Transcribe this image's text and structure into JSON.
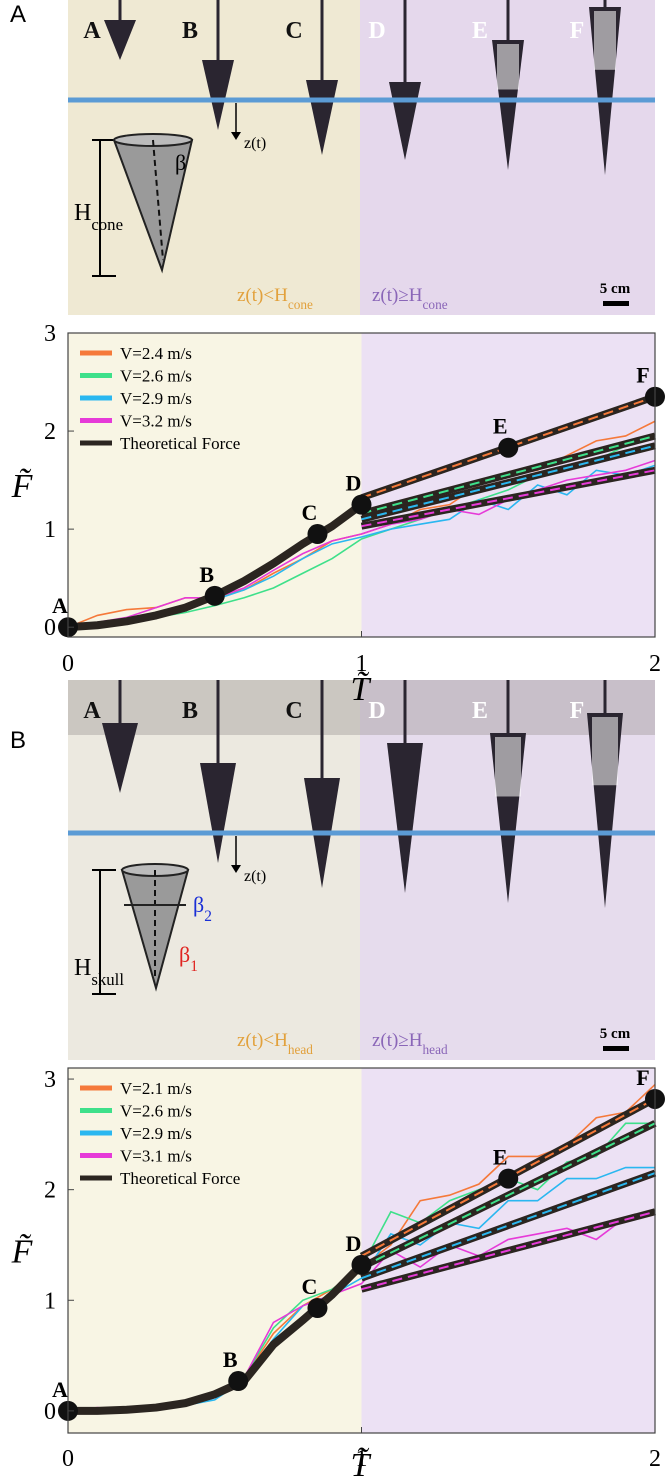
{
  "panels": [
    {
      "label": "A",
      "photo": {
        "frames": [
          "A",
          "B",
          "C",
          "D",
          "E",
          "F"
        ],
        "depth_label": "z(t)",
        "height_label": {
          "main": "H",
          "sub": "cone"
        },
        "angle_labels": [
          "β"
        ],
        "conditions": [
          {
            "main": "z(t)<H",
            "sub": "cone",
            "color": "#e2a13c"
          },
          {
            "main": "z(t)≥H",
            "sub": "cone",
            "color": "#8a66b8"
          }
        ],
        "scale_label": "5 cm"
      }
    },
    {
      "label": "B",
      "photo": {
        "frames": [
          "A",
          "B",
          "C",
          "D",
          "E",
          "F"
        ],
        "depth_label": "z(t)",
        "height_label": {
          "main": "H",
          "sub": "skull"
        },
        "angle_labels": [
          {
            "main": "β",
            "sub": "2",
            "color": "#1a2fd6"
          },
          {
            "main": "β",
            "sub": "1",
            "color": "#e0231f"
          }
        ],
        "conditions": [
          {
            "main": "z(t)<H",
            "sub": "head",
            "color": "#e2a13c"
          },
          {
            "main": "z(t)≥H",
            "sub": "head",
            "color": "#8a66b8"
          }
        ],
        "scale_label": "5 cm"
      }
    }
  ],
  "chart_data": [
    {
      "type": "line",
      "x_label": "T̃",
      "y_label": "F̃",
      "xlim": [
        0,
        2
      ],
      "xticks": [
        0,
        1,
        2
      ],
      "ylim": [
        -0.1,
        3
      ],
      "yticks": [
        0,
        1,
        2,
        3
      ],
      "regions": [
        {
          "from": 0,
          "to": 1,
          "color": "#f8f5e4"
        },
        {
          "from": 1,
          "to": 2,
          "color": "#ece1f4"
        }
      ],
      "x": [
        0,
        0.1,
        0.2,
        0.3,
        0.4,
        0.5,
        0.6,
        0.7,
        0.8,
        0.9,
        1,
        1.1,
        1.2,
        1.3,
        1.4,
        1.5,
        1.6,
        1.7,
        1.8,
        1.9,
        2
      ],
      "fit_x": [
        1,
        2
      ],
      "series": [
        {
          "name": "V=2.4 m/s",
          "color": "#f5793a",
          "values": [
            0,
            0.12,
            0.18,
            0.2,
            0.3,
            0.3,
            0.38,
            0.55,
            0.7,
            0.88,
            0.95,
            1.05,
            1.2,
            1.25,
            1.45,
            1.55,
            1.6,
            1.75,
            1.9,
            1.95,
            2.1
          ],
          "fit": [
            1.32,
            2.35
          ]
        },
        {
          "name": "V=2.6 m/s",
          "color": "#3ee08a",
          "values": [
            0,
            0.02,
            0.05,
            0.1,
            0.15,
            0.22,
            0.3,
            0.4,
            0.55,
            0.7,
            0.9,
            1.0,
            1.1,
            1.2,
            1.3,
            1.4,
            1.55,
            1.65,
            1.7,
            1.85,
            1.95
          ],
          "fit": [
            1.16,
            1.95
          ]
        },
        {
          "name": "V=2.9 m/s",
          "color": "#2ab7f0",
          "values": [
            0,
            0.03,
            0.06,
            0.12,
            0.2,
            0.28,
            0.38,
            0.52,
            0.7,
            0.85,
            0.92,
            1.0,
            1.05,
            1.1,
            1.3,
            1.2,
            1.45,
            1.35,
            1.6,
            1.55,
            1.65
          ],
          "fit": [
            1.1,
            1.85
          ]
        },
        {
          "name": "V=3.2 m/s",
          "color": "#e63ad8",
          "values": [
            0,
            0.05,
            0.1,
            0.2,
            0.3,
            0.3,
            0.4,
            0.58,
            0.75,
            0.88,
            0.95,
            1.05,
            1.1,
            1.2,
            1.15,
            1.3,
            1.4,
            1.5,
            1.55,
            1.6,
            1.7
          ],
          "fit": [
            1.03,
            1.6
          ]
        },
        {
          "name": "Theoretical Force",
          "color": "#2b2520",
          "x": [
            0,
            0.1,
            0.2,
            0.3,
            0.4,
            0.5,
            0.6,
            0.7,
            0.8,
            0.9,
            1
          ],
          "values": [
            0,
            0.02,
            0.06,
            0.12,
            0.2,
            0.32,
            0.47,
            0.65,
            0.85,
            1.03,
            1.25
          ]
        }
      ],
      "points": {
        "labels": [
          "A",
          "B",
          "C",
          "D",
          "E",
          "F"
        ],
        "x": [
          0,
          0.5,
          0.85,
          1,
          1.5,
          2
        ],
        "values": [
          0,
          0.32,
          0.95,
          1.25,
          1.83,
          2.35
        ]
      }
    },
    {
      "type": "line",
      "x_label": "T̃",
      "y_label": "F̃",
      "xlim": [
        0,
        2
      ],
      "xticks": [
        0,
        1,
        2
      ],
      "ylim": [
        -0.2,
        3.1
      ],
      "yticks": [
        0,
        1,
        2,
        3
      ],
      "regions": [
        {
          "from": 0,
          "to": 1,
          "color": "#f8f5e4"
        },
        {
          "from": 1,
          "to": 2,
          "color": "#ece1f4"
        }
      ],
      "x": [
        0,
        0.1,
        0.2,
        0.3,
        0.4,
        0.5,
        0.6,
        0.7,
        0.8,
        0.9,
        1,
        1.1,
        1.2,
        1.3,
        1.4,
        1.5,
        1.6,
        1.7,
        1.8,
        1.9,
        2
      ],
      "fit_x": [
        1,
        2
      ],
      "series": [
        {
          "name": "V=2.1 m/s",
          "color": "#f5793a",
          "values": [
            0,
            0.02,
            0,
            0.02,
            0.05,
            0.12,
            0.3,
            0.7,
            0.95,
            1.1,
            1.3,
            1.5,
            1.9,
            1.95,
            2.05,
            2.3,
            2.3,
            2.4,
            2.65,
            2.7,
            2.95
          ],
          "fit": [
            1.4,
            2.82
          ]
        },
        {
          "name": "V=2.6 m/s",
          "color": "#3ee08a",
          "values": [
            0,
            0.01,
            0.02,
            0.03,
            0.06,
            0.12,
            0.3,
            0.75,
            1.0,
            1.1,
            1.3,
            1.8,
            1.7,
            1.9,
            2.0,
            2.1,
            2.0,
            2.25,
            2.3,
            2.6,
            2.6
          ],
          "fit": [
            1.3,
            2.6
          ]
        },
        {
          "name": "V=2.9 m/s",
          "color": "#2ab7f0",
          "values": [
            0,
            0.02,
            0.01,
            0.02,
            0.05,
            0.1,
            0.28,
            0.65,
            0.95,
            1.05,
            1.2,
            1.6,
            1.5,
            1.7,
            1.65,
            1.9,
            1.9,
            2.1,
            2.1,
            2.2,
            2.2
          ],
          "fit": [
            1.2,
            2.15
          ]
        },
        {
          "name": "V=3.1 m/s",
          "color": "#e63ad8",
          "values": [
            0,
            0.03,
            0,
            0.02,
            0.05,
            0.12,
            0.3,
            0.8,
            0.95,
            1.05,
            1.15,
            1.45,
            1.3,
            1.5,
            1.4,
            1.55,
            1.6,
            1.65,
            1.55,
            1.75,
            1.8
          ],
          "fit": [
            1.1,
            1.8
          ]
        },
        {
          "name": "Theoretical Force",
          "color": "#2b2520",
          "x": [
            0,
            0.1,
            0.2,
            0.3,
            0.4,
            0.5,
            0.6,
            0.7,
            0.8,
            0.9,
            1
          ],
          "values": [
            0,
            0,
            0.01,
            0.03,
            0.07,
            0.15,
            0.27,
            0.6,
            0.82,
            1.05,
            1.32
          ]
        }
      ],
      "points": {
        "labels": [
          "A",
          "B",
          "C",
          "D",
          "E",
          "F"
        ],
        "x": [
          0,
          0.58,
          0.85,
          1,
          1.5,
          2
        ],
        "values": [
          0,
          0.27,
          0.93,
          1.32,
          2.1,
          2.82
        ]
      }
    }
  ]
}
